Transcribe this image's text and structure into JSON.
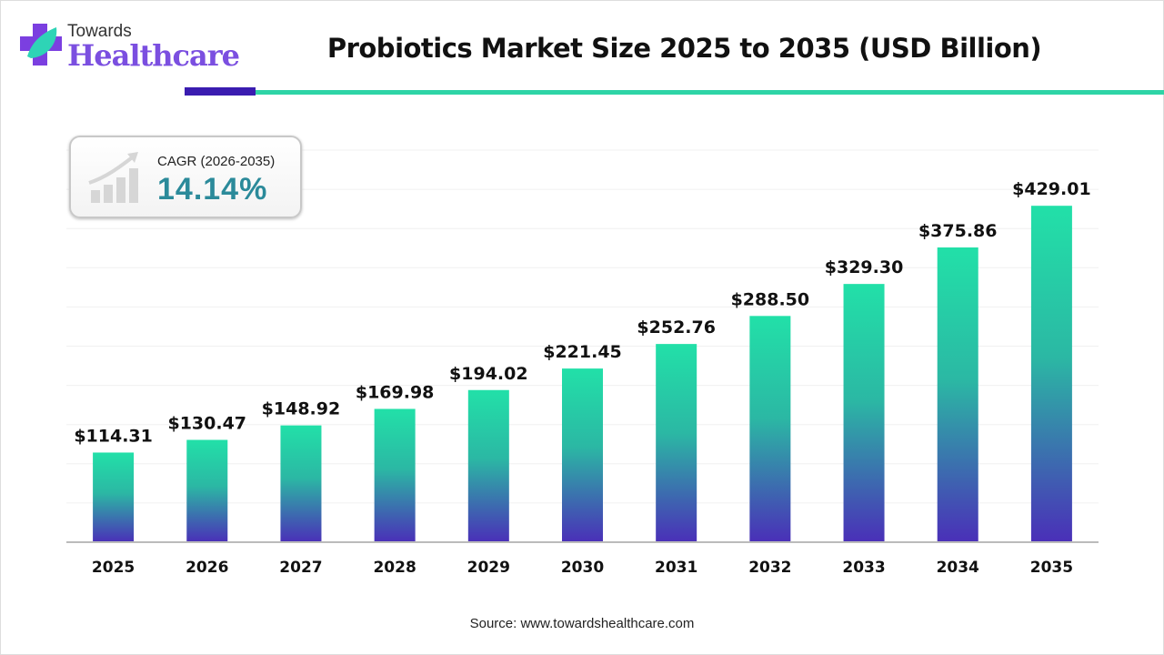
{
  "logo": {
    "line1": "Towards",
    "line2": "Healthcare"
  },
  "colors": {
    "bar_top": "#22e0a8",
    "bar_bottom": "#4a2fb8",
    "accent_dark": "#3a1cb0",
    "accent_green": "#2ed4a6",
    "cagr": "#2b8a9a"
  },
  "cagr": {
    "label": "CAGR (2026-2035)",
    "value": "14.14%",
    "icon": "growth-chart-icon"
  },
  "source": "Source: www.towardshealthcare.com",
  "chart_data": {
    "type": "bar",
    "title": "Probiotics Market Size 2025 to 2035 (USD Billion)",
    "categories": [
      "2025",
      "2026",
      "2027",
      "2028",
      "2029",
      "2030",
      "2031",
      "2032",
      "2033",
      "2034",
      "2035"
    ],
    "values": [
      114.31,
      130.47,
      148.92,
      169.98,
      194.02,
      221.45,
      252.76,
      288.5,
      329.3,
      375.86,
      429.01
    ],
    "data_labels": [
      "$114.31",
      "$130.47",
      "$148.92",
      "$169.98",
      "$194.02",
      "$221.45",
      "$252.76",
      "$288.50",
      "$329.30",
      "$375.86",
      "$429.01"
    ],
    "ylim": [
      0,
      500
    ],
    "grid": true,
    "xlabel": "",
    "ylabel": ""
  }
}
